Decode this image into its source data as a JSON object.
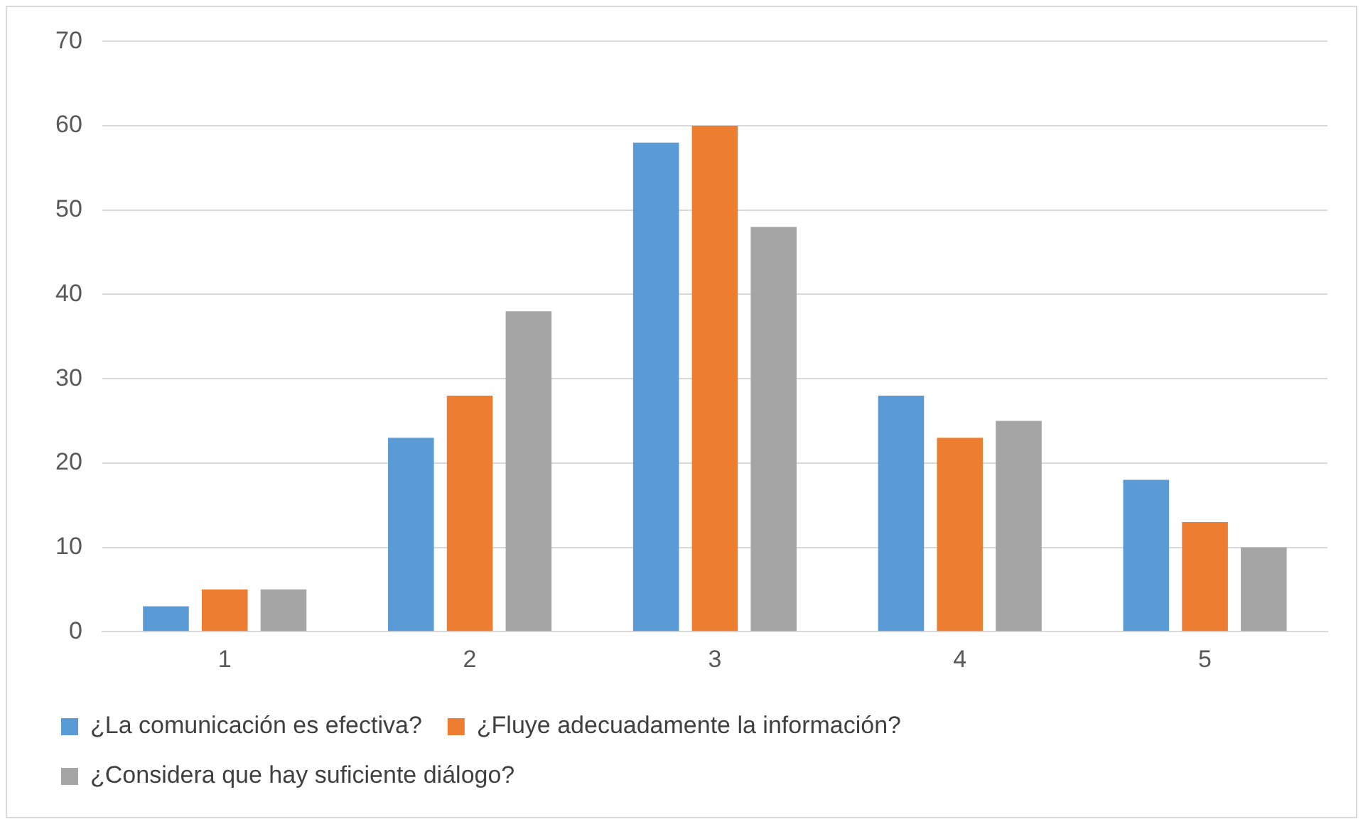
{
  "chart_data": {
    "type": "bar",
    "categories": [
      "1",
      "2",
      "3",
      "4",
      "5"
    ],
    "series": [
      {
        "name": "¿La comunicación es efectiva?",
        "color": "#5b9bd5",
        "values": [
          3,
          23,
          58,
          28,
          18
        ]
      },
      {
        "name": "¿Fluye adecuadamente la información?",
        "color": "#ed7d31",
        "values": [
          5,
          28,
          60,
          23,
          13
        ]
      },
      {
        "name": "¿Considera que hay suficiente diálogo?",
        "color": "#a5a5a5",
        "values": [
          5,
          38,
          48,
          25,
          10
        ]
      }
    ],
    "ylim": [
      0,
      70
    ],
    "yticks": [
      0,
      10,
      20,
      30,
      40,
      50,
      60,
      70
    ],
    "grid": "y",
    "legend": "bottom"
  }
}
